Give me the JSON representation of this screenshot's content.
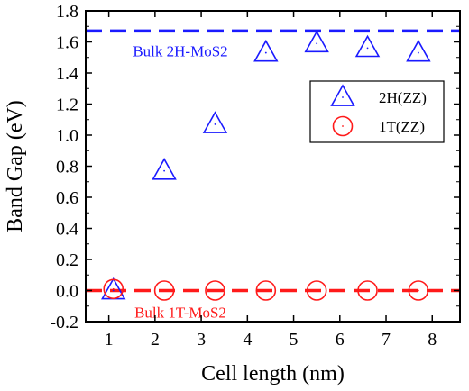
{
  "chart_data": {
    "type": "scatter",
    "xlabel": "Cell length (nm)",
    "ylabel": "Band Gap (eV)",
    "xlim": [
      0.5,
      8.6
    ],
    "ylim": [
      -0.2,
      1.8
    ],
    "xticks": [
      "1",
      "2",
      "3",
      "4",
      "5",
      "6",
      "7",
      "8"
    ],
    "yticks": [
      "-0.2",
      "0.0",
      "0.2",
      "0.4",
      "0.6",
      "0.8",
      "1.0",
      "1.2",
      "1.4",
      "1.6",
      "1.8"
    ],
    "series": [
      {
        "name": "2H(ZZ)",
        "marker": "triangle",
        "color": "#1a1aff",
        "x": [
          1.1,
          2.2,
          3.3,
          4.4,
          5.5,
          6.6,
          7.7
        ],
        "y": [
          0.0,
          0.77,
          1.07,
          1.53,
          1.59,
          1.56,
          1.53
        ]
      },
      {
        "name": "1T(ZZ)",
        "marker": "circle",
        "color": "#ff1a1a",
        "x": [
          1.1,
          2.2,
          3.3,
          4.4,
          5.5,
          6.6,
          7.7
        ],
        "y": [
          0.01,
          0.0,
          0.0,
          0.0,
          0.0,
          0.0,
          0.0
        ]
      }
    ],
    "reference_lines": [
      {
        "label": "Bulk 2H-MoS2",
        "y": 1.67,
        "color": "#1a1aff",
        "style": "dashed"
      },
      {
        "label": "Bulk 1T-MoS2",
        "y": 0.0,
        "color": "#ff1a1a",
        "style": "dashed"
      }
    ],
    "legend_position": "top-right",
    "grid": false
  }
}
